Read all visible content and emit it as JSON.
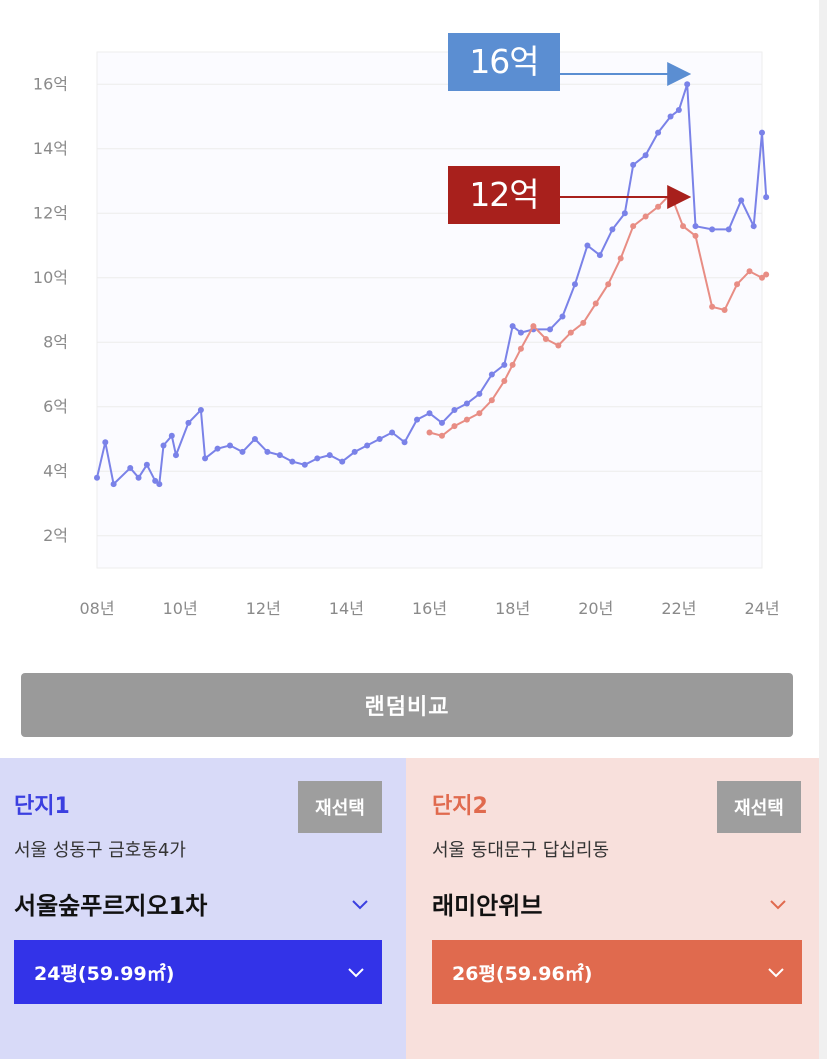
{
  "chart_data": {
    "type": "line",
    "y_ticks": [
      "2억",
      "4억",
      "6억",
      "8억",
      "10억",
      "12억",
      "14억",
      "16억"
    ],
    "x_ticks": [
      "08년",
      "10년",
      "12년",
      "14년",
      "16년",
      "18년",
      "20년",
      "22년",
      "24년"
    ],
    "xlim": [
      2008,
      2024
    ],
    "ylim": [
      1,
      17
    ],
    "grid": true,
    "annotations": [
      {
        "label": "16억",
        "color": "#5b8ed2",
        "target_x": 2022.2,
        "target_y": 16.2
      },
      {
        "label": "12억",
        "color": "#a8201c",
        "target_x": 2022.2,
        "target_y": 12.4
      }
    ],
    "series": [
      {
        "color": "#7a82e8",
        "points": [
          [
            2008.0,
            3.8
          ],
          [
            2008.2,
            4.9
          ],
          [
            2008.4,
            3.6
          ],
          [
            2008.8,
            4.1
          ],
          [
            2009.0,
            3.8
          ],
          [
            2009.2,
            4.2
          ],
          [
            2009.4,
            3.7
          ],
          [
            2009.5,
            3.6
          ],
          [
            2009.6,
            4.8
          ],
          [
            2009.8,
            5.1
          ],
          [
            2009.9,
            4.5
          ],
          [
            2010.2,
            5.5
          ],
          [
            2010.5,
            5.9
          ],
          [
            2010.6,
            4.4
          ],
          [
            2010.9,
            4.7
          ],
          [
            2011.2,
            4.8
          ],
          [
            2011.5,
            4.6
          ],
          [
            2011.8,
            5.0
          ],
          [
            2012.1,
            4.6
          ],
          [
            2012.4,
            4.5
          ],
          [
            2012.7,
            4.3
          ],
          [
            2013.0,
            4.2
          ],
          [
            2013.3,
            4.4
          ],
          [
            2013.6,
            4.5
          ],
          [
            2013.9,
            4.3
          ],
          [
            2014.2,
            4.6
          ],
          [
            2014.5,
            4.8
          ],
          [
            2014.8,
            5.0
          ],
          [
            2015.1,
            5.2
          ],
          [
            2015.4,
            4.9
          ],
          [
            2015.7,
            5.6
          ],
          [
            2016.0,
            5.8
          ],
          [
            2016.3,
            5.5
          ],
          [
            2016.6,
            5.9
          ],
          [
            2016.9,
            6.1
          ],
          [
            2017.2,
            6.4
          ],
          [
            2017.5,
            7.0
          ],
          [
            2017.8,
            7.3
          ],
          [
            2018.0,
            8.5
          ],
          [
            2018.2,
            8.3
          ],
          [
            2018.5,
            8.4
          ],
          [
            2018.9,
            8.4
          ],
          [
            2019.2,
            8.8
          ],
          [
            2019.5,
            9.8
          ],
          [
            2019.8,
            11.0
          ],
          [
            2020.1,
            10.7
          ],
          [
            2020.4,
            11.5
          ],
          [
            2020.7,
            12.0
          ],
          [
            2020.9,
            13.5
          ],
          [
            2021.2,
            13.8
          ],
          [
            2021.5,
            14.5
          ],
          [
            2021.8,
            15.0
          ],
          [
            2022.0,
            15.2
          ],
          [
            2022.2,
            16.0
          ],
          [
            2022.4,
            11.6
          ],
          [
            2022.8,
            11.5
          ],
          [
            2023.2,
            11.5
          ],
          [
            2023.5,
            12.4
          ],
          [
            2023.8,
            11.6
          ],
          [
            2024.0,
            14.5
          ],
          [
            2024.1,
            12.5
          ]
        ]
      },
      {
        "color": "#e88d84",
        "points": [
          [
            2016.0,
            5.2
          ],
          [
            2016.3,
            5.1
          ],
          [
            2016.6,
            5.4
          ],
          [
            2016.9,
            5.6
          ],
          [
            2017.2,
            5.8
          ],
          [
            2017.5,
            6.2
          ],
          [
            2017.8,
            6.8
          ],
          [
            2018.0,
            7.3
          ],
          [
            2018.2,
            7.8
          ],
          [
            2018.5,
            8.5
          ],
          [
            2018.8,
            8.1
          ],
          [
            2019.1,
            7.9
          ],
          [
            2019.4,
            8.3
          ],
          [
            2019.7,
            8.6
          ],
          [
            2020.0,
            9.2
          ],
          [
            2020.3,
            9.8
          ],
          [
            2020.6,
            10.6
          ],
          [
            2020.9,
            11.6
          ],
          [
            2021.2,
            11.9
          ],
          [
            2021.5,
            12.2
          ],
          [
            2021.8,
            12.6
          ],
          [
            2022.1,
            11.6
          ],
          [
            2022.4,
            11.3
          ],
          [
            2022.8,
            9.1
          ],
          [
            2023.1,
            9.0
          ],
          [
            2023.4,
            9.8
          ],
          [
            2023.7,
            10.2
          ],
          [
            2024.0,
            10.0
          ],
          [
            2024.1,
            10.1
          ]
        ]
      }
    ]
  },
  "random_compare_label": "랜덤비교",
  "panels": [
    {
      "title": "단지1",
      "reselect_label": "재선택",
      "address": "서울 성동구 금호동4가",
      "complex_name": "서울숲푸르지오1차",
      "size_label": "24평(59.99㎡)",
      "accent_color": "#3b3fe0"
    },
    {
      "title": "단지2",
      "reselect_label": "재선택",
      "address": "서울 동대문구 답십리동",
      "complex_name": "래미안위브",
      "size_label": "26평(59.96㎡)",
      "accent_color": "#e06a4e"
    }
  ]
}
